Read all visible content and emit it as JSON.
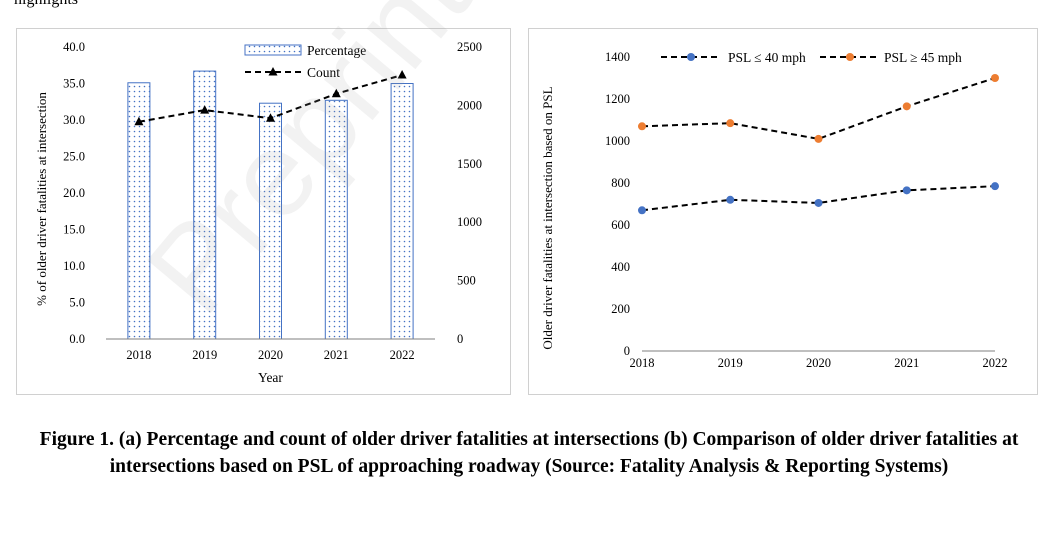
{
  "top_fragment": "highlights",
  "caption": "Figure 1. (a) Percentage and count of older driver fatalities at intersections (b) Comparison of older driver fatalities at intersections based on PSL of approaching roadway (Source: Fatality Analysis & Reporting Systems)",
  "watermark": "Preprint not peer reviewed",
  "colors": {
    "blue": "#4472c4",
    "orange": "#ed7d31",
    "black": "#000000"
  },
  "chart_data": [
    {
      "type": "bar",
      "categories": [
        "2018",
        "2019",
        "2020",
        "2021",
        "2022"
      ],
      "series": [
        {
          "name": "Percentage",
          "type": "bar",
          "axis": "left",
          "values": [
            35.1,
            36.7,
            32.3,
            32.7,
            35.0
          ]
        },
        {
          "name": "Count",
          "type": "line",
          "axis": "right",
          "values": [
            1860,
            1960,
            1890,
            2100,
            2260
          ]
        }
      ],
      "xlabel": "Year",
      "ylabel": "% of older driver fatalities at intersection",
      "ylim": [
        0,
        40
      ],
      "yticks": [
        "0.0",
        "5.0",
        "10.0",
        "15.0",
        "20.0",
        "25.0",
        "30.0",
        "35.0",
        "40.0"
      ],
      "y2lim": [
        0,
        2500
      ],
      "y2ticks": [
        "0",
        "500",
        "1000",
        "1500",
        "2000",
        "2500"
      ],
      "legend": "top-center",
      "grid": false
    },
    {
      "type": "line",
      "categories": [
        "2018",
        "2019",
        "2020",
        "2021",
        "2022"
      ],
      "series": [
        {
          "name": "PSL ≤ 40 mph",
          "color": "#4472c4",
          "values": [
            670,
            720,
            705,
            765,
            785
          ]
        },
        {
          "name": "PSL ≥ 45 mph",
          "color": "#ed7d31",
          "values": [
            1070,
            1085,
            1010,
            1165,
            1300
          ]
        }
      ],
      "xlabel": "",
      "ylabel": "Older driver fatalities at intersection based on PSL",
      "ylim": [
        0,
        1400
      ],
      "yticks": [
        "0",
        "200",
        "400",
        "600",
        "800",
        "1000",
        "1200",
        "1400"
      ],
      "legend": "top",
      "grid": false
    }
  ]
}
